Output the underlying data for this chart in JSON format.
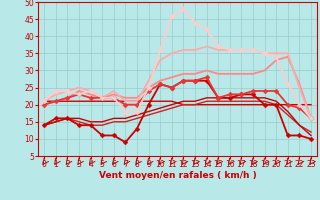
{
  "background_color": "#b8e8e8",
  "grid_color": "#99cccc",
  "xlabel": "Vent moyen/en rafales ( km/h )",
  "xlim": [
    -0.5,
    23.5
  ],
  "ylim": [
    5,
    50
  ],
  "yticks": [
    5,
    10,
    15,
    20,
    25,
    30,
    35,
    40,
    45,
    50
  ],
  "xticks": [
    0,
    1,
    2,
    3,
    4,
    5,
    6,
    7,
    8,
    9,
    10,
    11,
    12,
    13,
    14,
    15,
    16,
    17,
    18,
    19,
    20,
    21,
    22,
    23
  ],
  "lines": [
    {
      "x": [
        0,
        1,
        2,
        3,
        4,
        5,
        6,
        7,
        8,
        9,
        10,
        11,
        12,
        13,
        14,
        15,
        16,
        17,
        18,
        19,
        20,
        21,
        22,
        23
      ],
      "y": [
        21,
        21,
        21,
        21,
        21,
        21,
        21,
        21,
        21,
        21,
        21,
        21,
        20,
        20,
        20,
        20,
        20,
        20,
        20,
        20,
        20,
        20,
        20,
        20
      ],
      "color": "#cc0000",
      "lw": 1.0,
      "marker": null,
      "ms": 0,
      "zorder": 3
    },
    {
      "x": [
        0,
        1,
        2,
        3,
        4,
        5,
        6,
        7,
        8,
        9,
        10,
        11,
        12,
        13,
        14,
        15,
        16,
        17,
        18,
        19,
        20,
        21,
        22,
        23
      ],
      "y": [
        14,
        16,
        16,
        14,
        14,
        11,
        11,
        9,
        13,
        20,
        26,
        25,
        27,
        27,
        27,
        22,
        22,
        23,
        23,
        20,
        20,
        11,
        11,
        10
      ],
      "color": "#cc0000",
      "lw": 1.3,
      "marker": "D",
      "ms": 2.5,
      "zorder": 4
    },
    {
      "x": [
        0,
        1,
        2,
        3,
        4,
        5,
        6,
        7,
        8,
        9,
        10,
        11,
        12,
        13,
        14,
        15,
        16,
        17,
        18,
        19,
        20,
        21,
        22,
        23
      ],
      "y": [
        14,
        15,
        16,
        15,
        14,
        14,
        15,
        15,
        16,
        17,
        18,
        19,
        20,
        20,
        21,
        21,
        21,
        21,
        21,
        21,
        20,
        17,
        14,
        12
      ],
      "color": "#cc2222",
      "lw": 1.0,
      "marker": null,
      "ms": 0,
      "zorder": 3
    },
    {
      "x": [
        0,
        1,
        2,
        3,
        4,
        5,
        6,
        7,
        8,
        9,
        10,
        11,
        12,
        13,
        14,
        15,
        16,
        17,
        18,
        19,
        20,
        21,
        22,
        23
      ],
      "y": [
        14,
        15,
        16,
        16,
        15,
        15,
        16,
        16,
        17,
        18,
        19,
        20,
        21,
        21,
        22,
        22,
        22,
        22,
        22,
        22,
        21,
        18,
        14,
        11
      ],
      "color": "#cc0000",
      "lw": 1.0,
      "marker": null,
      "ms": 0,
      "zorder": 3
    },
    {
      "x": [
        0,
        1,
        2,
        3,
        4,
        5,
        6,
        7,
        8,
        9,
        10,
        11,
        12,
        13,
        14,
        15,
        16,
        17,
        18,
        19,
        20,
        21,
        22,
        23
      ],
      "y": [
        20,
        21,
        22,
        23,
        22,
        22,
        22,
        20,
        20,
        24,
        26,
        25,
        27,
        27,
        28,
        22,
        23,
        23,
        24,
        24,
        24,
        20,
        19,
        16
      ],
      "color": "#ee3333",
      "lw": 1.3,
      "marker": "D",
      "ms": 2.5,
      "zorder": 4
    },
    {
      "x": [
        0,
        1,
        2,
        3,
        4,
        5,
        6,
        7,
        8,
        9,
        10,
        11,
        12,
        13,
        14,
        15,
        16,
        17,
        18,
        19,
        20,
        21,
        22,
        23
      ],
      "y": [
        20,
        21,
        22,
        24,
        23,
        22,
        23,
        22,
        22,
        25,
        27,
        28,
        29,
        29,
        30,
        29,
        29,
        29,
        29,
        30,
        33,
        34,
        26,
        16
      ],
      "color": "#ff8888",
      "lw": 1.3,
      "marker": null,
      "ms": 0,
      "zorder": 3
    },
    {
      "x": [
        0,
        1,
        2,
        3,
        4,
        5,
        6,
        7,
        8,
        9,
        10,
        11,
        12,
        13,
        14,
        15,
        16,
        17,
        18,
        19,
        20,
        21,
        22,
        23
      ],
      "y": [
        21,
        23,
        24,
        25,
        24,
        22,
        24,
        21,
        21,
        27,
        33,
        35,
        36,
        36,
        37,
        36,
        36,
        36,
        36,
        35,
        35,
        35,
        25,
        16
      ],
      "color": "#ffaaaa",
      "lw": 1.3,
      "marker": null,
      "ms": 0,
      "zorder": 3
    },
    {
      "x": [
        0,
        1,
        2,
        3,
        4,
        5,
        6,
        7,
        8,
        9,
        10,
        11,
        12,
        13,
        14,
        15,
        16,
        17,
        18,
        19,
        20,
        21,
        22,
        23
      ],
      "y": [
        21,
        24,
        24,
        23,
        24,
        22,
        22,
        18,
        18,
        25,
        36,
        46,
        48,
        44,
        42,
        37,
        36,
        36,
        36,
        35,
        34,
        26,
        20,
        16
      ],
      "color": "#ffcccc",
      "lw": 1.3,
      "marker": "D",
      "ms": 2.5,
      "zorder": 4
    }
  ]
}
